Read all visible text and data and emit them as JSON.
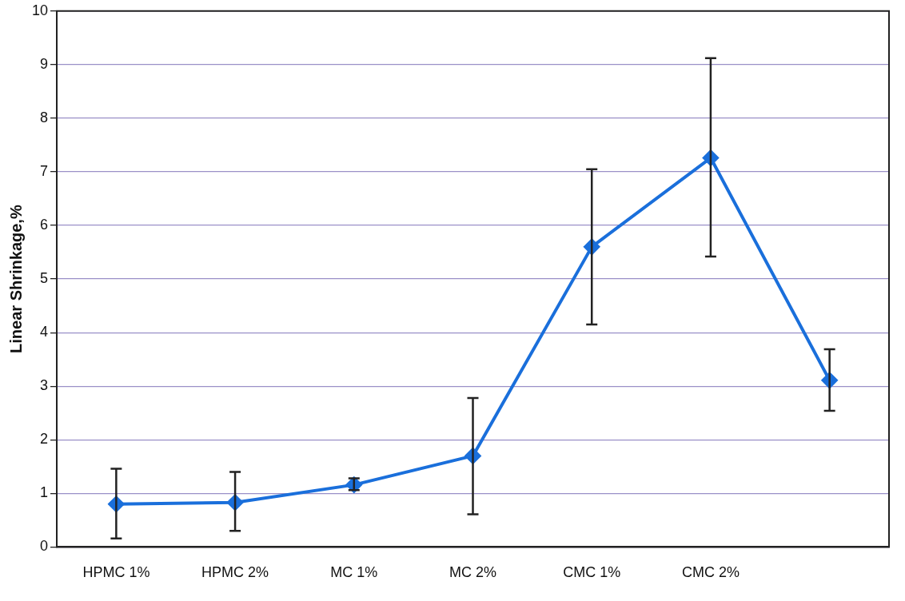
{
  "chart_data": {
    "type": "line",
    "ylabel": "Linear Shrinkage,%",
    "categories": [
      "HPMC 1%",
      "HPMC 2%",
      "MC 1%",
      "MC 2%",
      "CMC 1%",
      "CMC 2%",
      null
    ],
    "series": [
      {
        "color": "#1a6fdb",
        "values": [
          0.8,
          0.83,
          1.16,
          1.7,
          5.6,
          7.26,
          3.11
        ],
        "errors": [
          [
            0.16,
            1.46
          ],
          [
            0.3,
            1.4
          ],
          [
            1.06,
            1.28
          ],
          [
            0.61,
            2.78
          ],
          [
            4.15,
            7.05
          ],
          [
            5.42,
            9.12
          ],
          [
            2.54,
            3.69
          ]
        ]
      }
    ],
    "ylim": [
      0,
      10
    ],
    "yticks": [
      0,
      1,
      2,
      3,
      4,
      5,
      6,
      7,
      8,
      9,
      10
    ],
    "grid": "y",
    "legend": false,
    "marker": "diamond",
    "line_style": "solid"
  }
}
